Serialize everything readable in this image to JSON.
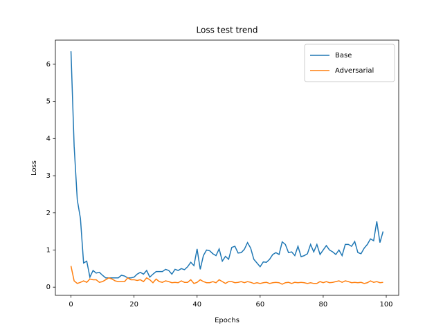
{
  "chart_data": {
    "type": "line",
    "title": "Loss test trend",
    "x_label": "Epochs",
    "y_label": "Loss",
    "x": [
      0,
      1,
      2,
      3,
      4,
      5,
      6,
      7,
      8,
      9,
      10,
      11,
      12,
      13,
      14,
      15,
      16,
      17,
      18,
      19,
      20,
      21,
      22,
      23,
      24,
      25,
      26,
      27,
      28,
      29,
      30,
      31,
      32,
      33,
      34,
      35,
      36,
      37,
      38,
      39,
      40,
      41,
      42,
      43,
      44,
      45,
      46,
      47,
      48,
      49,
      50,
      51,
      52,
      53,
      54,
      55,
      56,
      57,
      58,
      59,
      60,
      61,
      62,
      63,
      64,
      65,
      66,
      67,
      68,
      69,
      70,
      71,
      72,
      73,
      74,
      75,
      76,
      77,
      78,
      79,
      80,
      81,
      82,
      83,
      84,
      85,
      86,
      87,
      88,
      89,
      90,
      91,
      92,
      93,
      94,
      95,
      96,
      97,
      98,
      99
    ],
    "series": [
      {
        "name": "Base",
        "color": "#1f77b4",
        "values": [
          6.35,
          3.8,
          2.35,
          1.85,
          0.65,
          0.7,
          0.27,
          0.45,
          0.38,
          0.4,
          0.32,
          0.25,
          0.25,
          0.25,
          0.25,
          0.25,
          0.32,
          0.3,
          0.25,
          0.25,
          0.27,
          0.35,
          0.4,
          0.35,
          0.45,
          0.27,
          0.35,
          0.42,
          0.42,
          0.42,
          0.48,
          0.45,
          0.35,
          0.48,
          0.45,
          0.5,
          0.47,
          0.55,
          0.67,
          0.58,
          1.03,
          0.48,
          0.85,
          1.0,
          0.98,
          0.9,
          0.85,
          1.03,
          0.7,
          0.83,
          0.75,
          1.07,
          1.1,
          0.92,
          0.93,
          1.02,
          1.2,
          1.05,
          0.75,
          0.65,
          0.55,
          0.68,
          0.67,
          0.75,
          0.88,
          0.93,
          0.88,
          1.22,
          1.15,
          0.93,
          0.95,
          0.85,
          1.1,
          0.82,
          0.85,
          0.9,
          1.15,
          0.95,
          1.15,
          0.88,
          1.0,
          1.12,
          1.0,
          0.95,
          0.88,
          1.0,
          0.85,
          1.15,
          1.15,
          1.1,
          1.23,
          0.93,
          0.9,
          1.05,
          1.15,
          1.3,
          1.25,
          1.77,
          1.2,
          1.5
        ]
      },
      {
        "name": "Adversarial",
        "color": "#ff7f0e",
        "values": [
          0.57,
          0.17,
          0.1,
          0.13,
          0.17,
          0.13,
          0.22,
          0.2,
          0.2,
          0.13,
          0.15,
          0.2,
          0.25,
          0.22,
          0.17,
          0.15,
          0.15,
          0.15,
          0.25,
          0.2,
          0.2,
          0.18,
          0.2,
          0.15,
          0.25,
          0.2,
          0.12,
          0.22,
          0.15,
          0.13,
          0.17,
          0.15,
          0.12,
          0.13,
          0.12,
          0.17,
          0.13,
          0.13,
          0.2,
          0.1,
          0.13,
          0.2,
          0.15,
          0.12,
          0.12,
          0.15,
          0.12,
          0.2,
          0.15,
          0.1,
          0.15,
          0.15,
          0.12,
          0.13,
          0.15,
          0.12,
          0.15,
          0.13,
          0.1,
          0.12,
          0.1,
          0.12,
          0.13,
          0.1,
          0.12,
          0.13,
          0.12,
          0.08,
          0.12,
          0.13,
          0.1,
          0.13,
          0.12,
          0.13,
          0.12,
          0.1,
          0.12,
          0.1,
          0.1,
          0.15,
          0.12,
          0.15,
          0.12,
          0.13,
          0.15,
          0.17,
          0.13,
          0.17,
          0.15,
          0.12,
          0.13,
          0.12,
          0.13,
          0.1,
          0.12,
          0.17,
          0.13,
          0.15,
          0.12,
          0.13
        ]
      }
    ],
    "xlim": [
      -4.95,
      103.95
    ],
    "ylim": [
      -0.22,
      6.65
    ],
    "xticks": [
      0,
      20,
      40,
      60,
      80,
      100
    ],
    "yticks": [
      0,
      1,
      2,
      3,
      4,
      5,
      6
    ],
    "legend": "upper right"
  }
}
